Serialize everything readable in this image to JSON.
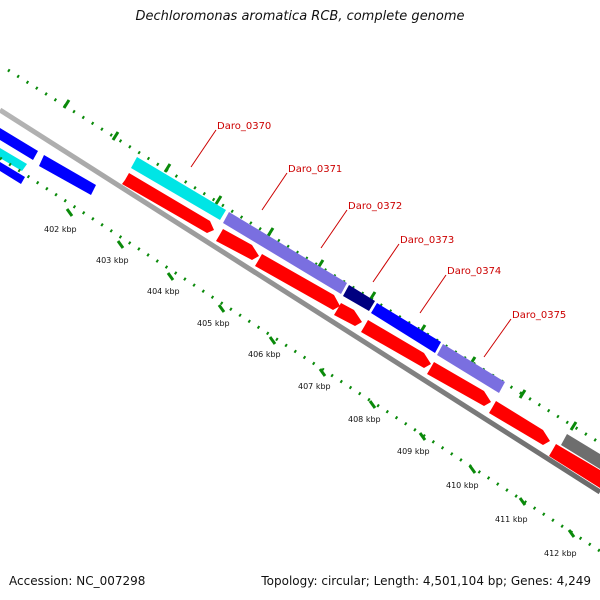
{
  "title": "Dechloromonas aromatica RCB, complete genome",
  "accession": "Accession: NC_007298",
  "topology": "Topology: circular; Length: 4,501,104 bp; Genes: 4,249",
  "scale_labels": [
    "402 kbp",
    "403 kbp",
    "404 kbp",
    "405 kbp",
    "406 kbp",
    "407 kbp",
    "408 kbp",
    "409 kbp",
    "410 kbp",
    "411 kbp",
    "412 kbp"
  ],
  "gene_labels": [
    "Daro_0370",
    "Daro_0371",
    "Daro_0372",
    "Daro_0373",
    "Daro_0374",
    "Daro_0375"
  ],
  "colors": {
    "cds": "#ff0000",
    "cog_cyan": "#00e5e5",
    "cog_blue": "#0000ff",
    "cog_slate": "#7a6fe0",
    "cog_navy": "#000080",
    "cog_gray": "#6e6e6e",
    "backbone": "#8a8a8a",
    "tick_green": "#0a8a0a",
    "label_red": "#cc0000"
  }
}
